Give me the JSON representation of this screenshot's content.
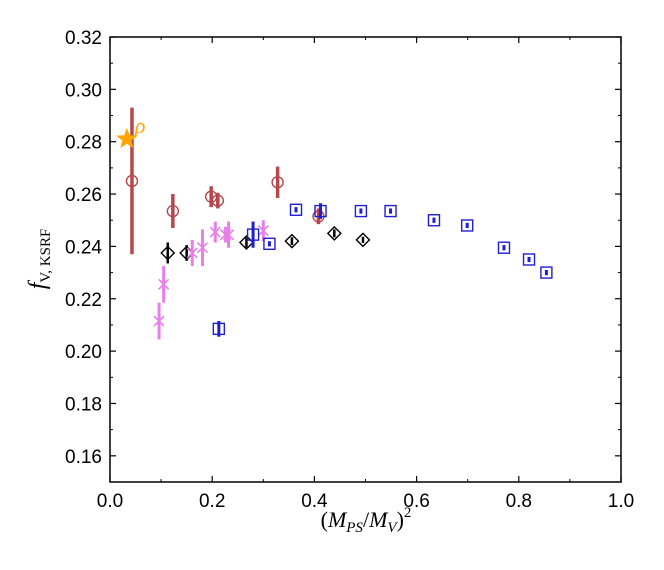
{
  "chart_data": {
    "type": "scatter",
    "title": "",
    "xlabel": {
      "open": "(",
      "M": "M",
      "ps_sub": "PS",
      "slash": "/",
      "M2": "M",
      "v_sub": "V",
      "close": ")",
      "sup": "2"
    },
    "ylabel": {
      "f": "f",
      "sub": "V, KSRF"
    },
    "xlim": [
      0.0,
      1.0
    ],
    "ylim": [
      0.15,
      0.32
    ],
    "xticks": [
      "0.0",
      "0.2",
      "0.4",
      "0.6",
      "0.8",
      "1.0"
    ],
    "xtick_values": [
      0.0,
      0.2,
      0.4,
      0.6,
      0.8,
      1.0
    ],
    "yticks": [
      "0.16",
      "0.18",
      "0.20",
      "0.22",
      "0.24",
      "0.26",
      "0.28",
      "0.30",
      "0.32"
    ],
    "ytick_values": [
      0.16,
      0.18,
      0.2,
      0.22,
      0.24,
      0.26,
      0.28,
      0.3,
      0.32
    ],
    "grid": false,
    "annotation": {
      "text": "ρ",
      "x": 0.033,
      "y": 0.281,
      "color": "#ffa500"
    },
    "series": [
      {
        "marker": "circle",
        "color": "#b5474d",
        "points": [
          {
            "x": 0.043,
            "y": 0.265,
            "err": 0.028
          },
          {
            "x": 0.123,
            "y": 0.2535,
            "err": 0.0065
          },
          {
            "x": 0.198,
            "y": 0.259,
            "err": 0.004
          },
          {
            "x": 0.211,
            "y": 0.2575,
            "err": 0.003
          },
          {
            "x": 0.328,
            "y": 0.2645,
            "err": 0.006
          },
          {
            "x": 0.408,
            "y": 0.2515,
            "err": 0.003
          }
        ]
      },
      {
        "marker": "diamond",
        "color": "#000000",
        "points": [
          {
            "x": 0.113,
            "y": 0.2375,
            "err": 0.004
          },
          {
            "x": 0.15,
            "y": 0.2375,
            "err": 0.003
          },
          {
            "x": 0.267,
            "y": 0.2415,
            "err": 0.002
          },
          {
            "x": 0.356,
            "y": 0.242,
            "err": 0.0015
          },
          {
            "x": 0.439,
            "y": 0.245,
            "err": 0.0015
          },
          {
            "x": 0.495,
            "y": 0.2425,
            "err": 0.0012
          }
        ]
      },
      {
        "marker": "x",
        "color": "#e87ee8",
        "points": [
          {
            "x": 0.096,
            "y": 0.2115,
            "err": 0.007
          },
          {
            "x": 0.105,
            "y": 0.2255,
            "err": 0.007
          },
          {
            "x": 0.161,
            "y": 0.2375,
            "err": 0.005
          },
          {
            "x": 0.181,
            "y": 0.2395,
            "err": 0.007
          },
          {
            "x": 0.206,
            "y": 0.2455,
            "err": 0.004
          },
          {
            "x": 0.226,
            "y": 0.2445,
            "err": 0.003
          },
          {
            "x": 0.232,
            "y": 0.2445,
            "err": 0.005
          },
          {
            "x": 0.3,
            "y": 0.246,
            "err": 0.004
          }
        ]
      },
      {
        "marker": "square",
        "color": "#1f1fd1",
        "points": [
          {
            "x": 0.213,
            "y": 0.2085,
            "err": 0.003
          },
          {
            "x": 0.28,
            "y": 0.2445,
            "err": 0.005
          },
          {
            "x": 0.312,
            "y": 0.241,
            "err": 0.001
          },
          {
            "x": 0.364,
            "y": 0.254,
            "err": 0.001
          },
          {
            "x": 0.412,
            "y": 0.2535,
            "err": 0.003
          },
          {
            "x": 0.491,
            "y": 0.2535,
            "err": 0.001
          },
          {
            "x": 0.549,
            "y": 0.2535,
            "err": 0.001
          },
          {
            "x": 0.634,
            "y": 0.25,
            "err": 0.001
          },
          {
            "x": 0.699,
            "y": 0.248,
            "err": 0.001
          },
          {
            "x": 0.771,
            "y": 0.2395,
            "err": 0.001
          },
          {
            "x": 0.82,
            "y": 0.235,
            "err": 0.001
          },
          {
            "x": 0.854,
            "y": 0.23,
            "err": 0.001
          }
        ]
      }
    ],
    "reference_point": {
      "marker": "star",
      "color": "#ffa500",
      "x": 0.033,
      "y": 0.281
    }
  }
}
